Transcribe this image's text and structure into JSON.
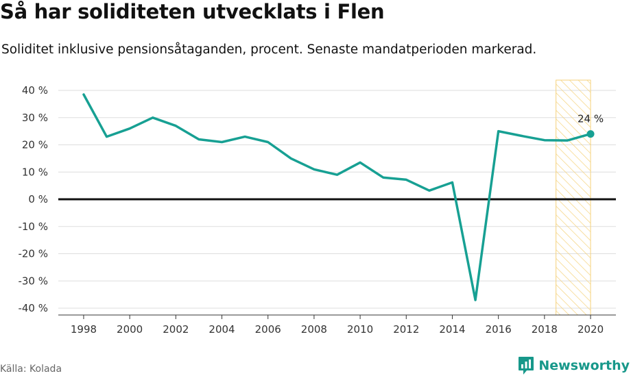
{
  "title": "Så har soliditeten utvecklats i Flen",
  "subtitle": "Soliditet inklusive pensionsåtaganden, procent. Senaste mandatperioden markerad.",
  "source": "Källa: Kolada",
  "brand": "Newsworthy",
  "colors": {
    "line": "#17a093",
    "highlight_stroke": "#f5d27a",
    "grid": "#dddddd",
    "zero_line": "#111111",
    "brand": "#17988a"
  },
  "chart_data": {
    "type": "line",
    "x": [
      1998,
      1999,
      2000,
      2001,
      2002,
      2003,
      2004,
      2005,
      2006,
      2007,
      2008,
      2009,
      2010,
      2011,
      2012,
      2013,
      2014,
      2015,
      2016,
      2017,
      2018,
      2019,
      2020
    ],
    "series": [
      {
        "values": [
          38.5,
          23,
          26,
          30,
          27,
          22,
          21,
          23,
          21,
          15,
          11,
          9,
          13.5,
          8,
          7.2,
          3.2,
          6.2,
          -37,
          25,
          23.3,
          21.7,
          21.6,
          24
        ]
      }
    ],
    "ylim": [
      -40,
      40
    ],
    "yticks": [
      40,
      30,
      20,
      10,
      0,
      -10,
      -20,
      -30,
      -40
    ],
    "ytick_labels": [
      "40 %",
      "30 %",
      "20 %",
      "10 %",
      "0 %",
      "-10 %",
      "-20 %",
      "-30 %",
      "-40 %"
    ],
    "xticks": [
      1998,
      2000,
      2002,
      2004,
      2006,
      2008,
      2010,
      2012,
      2014,
      2016,
      2018,
      2020
    ],
    "xtick_labels": [
      "1998",
      "2000",
      "2002",
      "2004",
      "2006",
      "2008",
      "2010",
      "2012",
      "2014",
      "2016",
      "2018",
      "2020"
    ],
    "highlight_range": [
      2018.5,
      2020
    ],
    "last_value_label": "24 %",
    "grid": true
  }
}
